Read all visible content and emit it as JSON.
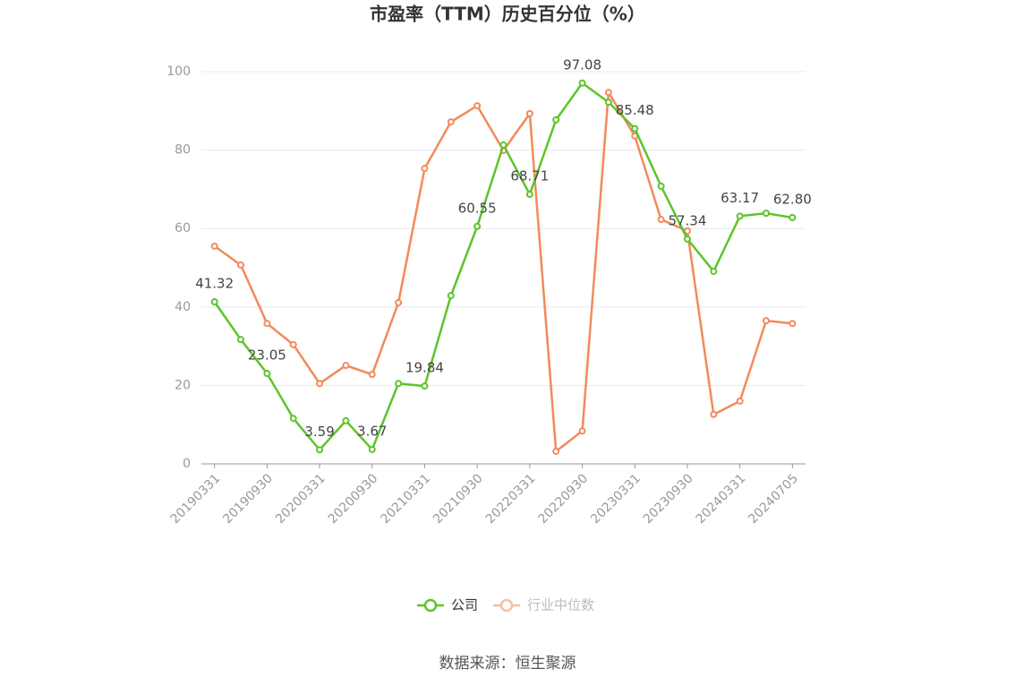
{
  "chart_data": {
    "type": "line",
    "title": "市盈率（TTM）历史百分位（%）",
    "source": "数据来源：恒生聚源",
    "categories": [
      "20190331",
      null,
      "20190930",
      null,
      "20200331",
      null,
      "20200930",
      null,
      "20210331",
      null,
      "20210930",
      null,
      "20220331",
      null,
      "20220930",
      null,
      "20230331",
      null,
      "20230930",
      null,
      "20240331",
      null,
      "20240705"
    ],
    "series": [
      {
        "name": "公司",
        "color": "#5cc42b",
        "values": [
          41.32,
          31.7,
          23.05,
          11.6,
          3.59,
          11.0,
          3.67,
          20.5,
          19.84,
          42.9,
          60.55,
          81.3,
          68.71,
          87.7,
          97.08,
          92.2,
          85.48,
          70.8,
          57.34,
          49.1,
          63.17,
          63.9,
          62.8
        ],
        "value_labels": [
          "41.32",
          null,
          "23.05",
          null,
          "3.59",
          null,
          "3.67",
          null,
          "19.84",
          null,
          "60.55",
          null,
          "68.71",
          null,
          "97.08",
          null,
          "85.48",
          null,
          "57.34",
          null,
          "63.17",
          null,
          "62.80"
        ]
      },
      {
        "name": "行业中位数",
        "color": "#f28a5b",
        "values": [
          55.5,
          50.7,
          35.8,
          30.4,
          20.5,
          25.1,
          22.8,
          41.1,
          75.3,
          87.2,
          91.3,
          79.9,
          89.3,
          3.2,
          8.4,
          94.7,
          83.6,
          62.3,
          59.4,
          12.6,
          16.0,
          36.5,
          35.8
        ]
      }
    ],
    "ylim": [
      0,
      100
    ],
    "yticks": [
      0,
      20,
      40,
      60,
      80,
      100
    ],
    "grid": true
  }
}
